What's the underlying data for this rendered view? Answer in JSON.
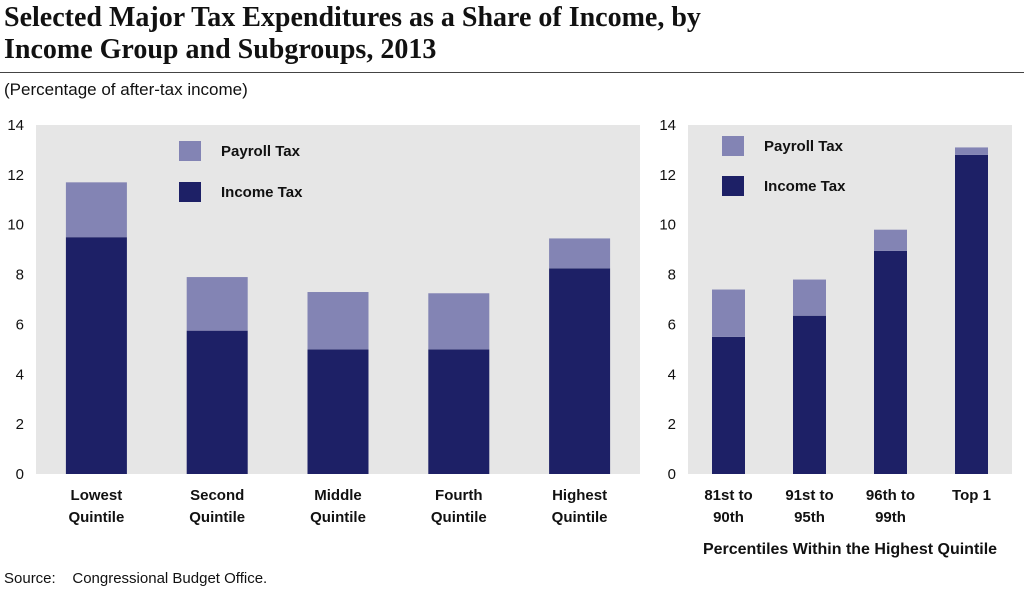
{
  "title_line1": "Selected Major Tax Expenditures as a Share of Income, by",
  "title_line2": "Income Group and Subgroups, 2013",
  "subtitle": "(Percentage of after-tax income)",
  "source": "Source:    Congressional Budget Office.",
  "colors": {
    "payroll": "#8384b4",
    "income": "#1d2066",
    "plot_bg": "#e6e6e6"
  },
  "chart_data": [
    {
      "type": "bar",
      "stacked": true,
      "categories": [
        [
          "Lowest",
          "Quintile"
        ],
        [
          "Second",
          "Quintile"
        ],
        [
          "Middle",
          "Quintile"
        ],
        [
          "Fourth",
          "Quintile"
        ],
        [
          "Highest",
          "Quintile"
        ]
      ],
      "series": [
        {
          "name": "Income Tax",
          "values": [
            9.5,
            5.75,
            5.0,
            5.0,
            8.25
          ]
        },
        {
          "name": "Payroll Tax",
          "values": [
            2.2,
            2.15,
            2.3,
            2.25,
            1.2
          ]
        }
      ],
      "legend": [
        "Payroll Tax",
        "Income Tax"
      ],
      "ylim": [
        0,
        14
      ],
      "yticks": [
        0,
        2,
        4,
        6,
        8,
        10,
        12,
        14
      ],
      "xlabel": "",
      "grid": false
    },
    {
      "type": "bar",
      "stacked": true,
      "categories": [
        [
          "81st to",
          "90th"
        ],
        [
          "91st to",
          "95th"
        ],
        [
          "96th to",
          "99th"
        ],
        [
          "Top 1",
          ""
        ]
      ],
      "series": [
        {
          "name": "Income Tax",
          "values": [
            5.5,
            6.35,
            8.95,
            12.8
          ]
        },
        {
          "name": "Payroll Tax",
          "values": [
            1.9,
            1.45,
            0.85,
            0.3
          ]
        }
      ],
      "legend": [
        "Payroll Tax",
        "Income Tax"
      ],
      "ylim": [
        0,
        14
      ],
      "yticks": [
        0,
        2,
        4,
        6,
        8,
        10,
        12,
        14
      ],
      "xlabel": "Percentiles Within the Highest Quintile",
      "grid": false
    }
  ]
}
